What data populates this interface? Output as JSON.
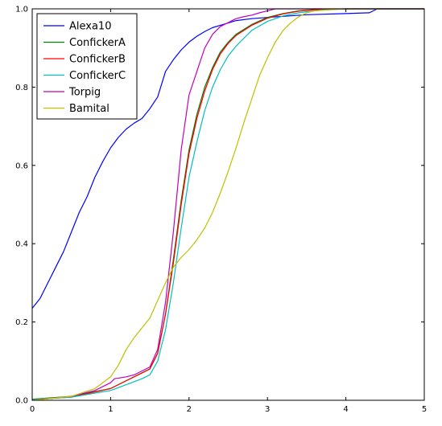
{
  "chart_data": {
    "type": "line",
    "title": "",
    "xlabel": "",
    "ylabel": "",
    "xlim": [
      0,
      5
    ],
    "ylim": [
      0,
      1.0
    ],
    "xticks": [
      0,
      1,
      2,
      3,
      4,
      5
    ],
    "yticks": [
      0.0,
      0.2,
      0.4,
      0.6,
      0.8,
      1.0
    ],
    "xtick_labels": [
      "0",
      "1",
      "2",
      "3",
      "4",
      "5"
    ],
    "ytick_labels": [
      "0.0",
      "0.2",
      "0.4",
      "0.6",
      "0.8",
      "1.0"
    ],
    "grid": false,
    "legend_position": "upper-left",
    "series": [
      {
        "name": "Alexa10",
        "color": "#0000ff",
        "x": [
          0,
          0.1,
          0.2,
          0.3,
          0.4,
          0.5,
          0.6,
          0.7,
          0.8,
          0.9,
          1.0,
          1.1,
          1.2,
          1.3,
          1.4,
          1.5,
          1.6,
          1.7,
          1.8,
          1.9,
          2.0,
          2.1,
          2.2,
          2.3,
          2.4,
          2.5,
          2.6,
          2.8,
          3.0,
          3.5,
          4.0,
          4.3,
          4.4,
          5.0
        ],
        "y": [
          0.235,
          0.26,
          0.3,
          0.34,
          0.38,
          0.43,
          0.48,
          0.52,
          0.57,
          0.61,
          0.645,
          0.672,
          0.693,
          0.708,
          0.72,
          0.745,
          0.775,
          0.84,
          0.87,
          0.895,
          0.915,
          0.93,
          0.942,
          0.952,
          0.958,
          0.964,
          0.97,
          0.975,
          0.978,
          0.985,
          0.988,
          0.99,
          1.0,
          1.0
        ]
      },
      {
        "name": "ConfickerA",
        "color": "#008000",
        "x": [
          0,
          0.5,
          1.0,
          1.2,
          1.4,
          1.5,
          1.6,
          1.7,
          1.8,
          1.9,
          2.0,
          2.1,
          2.2,
          2.3,
          2.4,
          2.5,
          2.6,
          2.8,
          3.0,
          3.2,
          3.4,
          3.6,
          4.0,
          5.0
        ],
        "y": [
          0.003,
          0.01,
          0.03,
          0.05,
          0.07,
          0.08,
          0.12,
          0.22,
          0.36,
          0.51,
          0.64,
          0.73,
          0.8,
          0.85,
          0.89,
          0.915,
          0.935,
          0.96,
          0.978,
          0.988,
          0.995,
          0.998,
          1.0,
          1.0
        ]
      },
      {
        "name": "ConfickerB",
        "color": "#ff0000",
        "x": [
          0,
          0.5,
          1.0,
          1.2,
          1.4,
          1.5,
          1.6,
          1.7,
          1.8,
          1.9,
          2.0,
          2.1,
          2.2,
          2.3,
          2.4,
          2.5,
          2.6,
          2.8,
          3.0,
          3.2,
          3.4,
          3.6,
          4.0,
          5.0
        ],
        "y": [
          0.002,
          0.008,
          0.03,
          0.05,
          0.07,
          0.08,
          0.12,
          0.22,
          0.35,
          0.5,
          0.63,
          0.72,
          0.79,
          0.845,
          0.885,
          0.912,
          0.932,
          0.958,
          0.976,
          0.987,
          0.994,
          0.998,
          1.0,
          1.0
        ]
      },
      {
        "name": "ConfickerC",
        "color": "#00bfbf",
        "x": [
          0,
          0.5,
          1.0,
          1.2,
          1.4,
          1.5,
          1.6,
          1.7,
          1.8,
          1.9,
          2.0,
          2.1,
          2.2,
          2.3,
          2.4,
          2.5,
          2.6,
          2.8,
          3.0,
          3.2,
          3.4,
          3.6,
          3.8,
          4.0,
          5.0
        ],
        "y": [
          0.002,
          0.008,
          0.025,
          0.04,
          0.055,
          0.065,
          0.1,
          0.18,
          0.3,
          0.44,
          0.57,
          0.66,
          0.74,
          0.8,
          0.845,
          0.88,
          0.905,
          0.945,
          0.968,
          0.982,
          0.99,
          0.995,
          0.998,
          1.0,
          1.0
        ]
      },
      {
        "name": "Torpig",
        "color": "#bf00bf",
        "x": [
          0,
          0.5,
          0.8,
          1.0,
          1.05,
          1.2,
          1.3,
          1.4,
          1.5,
          1.6,
          1.7,
          1.8,
          1.9,
          2.0,
          2.1,
          2.2,
          2.3,
          2.4,
          2.5,
          2.6,
          2.7,
          2.8,
          2.9,
          3.0,
          3.1,
          3.3,
          5.0
        ],
        "y": [
          0.0,
          0.01,
          0.025,
          0.045,
          0.055,
          0.06,
          0.065,
          0.075,
          0.085,
          0.13,
          0.25,
          0.43,
          0.64,
          0.78,
          0.84,
          0.9,
          0.935,
          0.955,
          0.965,
          0.975,
          0.98,
          0.984,
          0.99,
          0.995,
          1.0,
          1.0,
          1.0
        ]
      },
      {
        "name": "Bamital",
        "color": "#bfbf00",
        "x": [
          0,
          0.5,
          0.8,
          1.0,
          1.1,
          1.2,
          1.3,
          1.4,
          1.5,
          1.6,
          1.7,
          1.8,
          1.9,
          2.0,
          2.1,
          2.2,
          2.3,
          2.4,
          2.5,
          2.6,
          2.7,
          2.8,
          2.9,
          3.0,
          3.1,
          3.2,
          3.3,
          3.4,
          3.5,
          3.6,
          3.7,
          3.8,
          3.9,
          4.0,
          4.2,
          5.0
        ],
        "y": [
          0.0,
          0.01,
          0.03,
          0.06,
          0.09,
          0.13,
          0.16,
          0.185,
          0.21,
          0.255,
          0.3,
          0.34,
          0.365,
          0.385,
          0.41,
          0.44,
          0.48,
          0.53,
          0.585,
          0.645,
          0.71,
          0.77,
          0.83,
          0.875,
          0.915,
          0.945,
          0.965,
          0.98,
          0.99,
          0.995,
          0.997,
          0.998,
          0.999,
          1.0,
          1.0,
          1.0
        ]
      }
    ]
  }
}
